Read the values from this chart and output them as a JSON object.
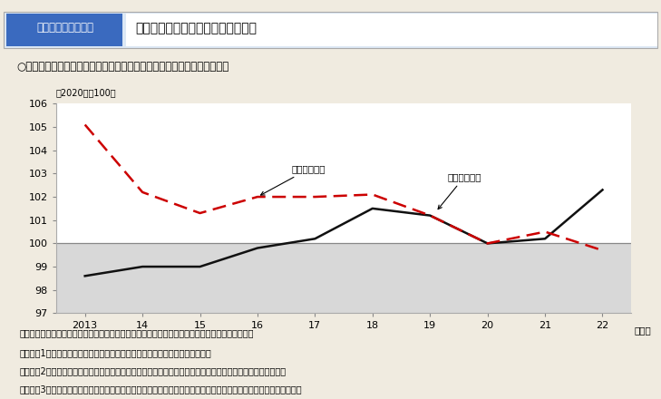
{
  "years": [
    2013,
    2014,
    2015,
    2016,
    2017,
    2018,
    2019,
    2020,
    2021,
    2022
  ],
  "nominal_wage": [
    98.6,
    99.0,
    99.0,
    99.8,
    100.2,
    101.5,
    101.2,
    100.0,
    100.2,
    102.3
  ],
  "real_wage": [
    105.1,
    102.2,
    101.3,
    102.0,
    102.0,
    102.1,
    101.2,
    100.0,
    100.5,
    99.7
  ],
  "nominal_color": "#111111",
  "real_color": "#cc0000",
  "bg_below_100": "#d8d8d8",
  "bg_above_100": "#ffffff",
  "line100_color": "#888888",
  "ylim": [
    97,
    106
  ],
  "xlim": [
    2012.5,
    2022.5
  ],
  "yticks": [
    97,
    98,
    99,
    100,
    101,
    102,
    103,
    104,
    105,
    106
  ],
  "xtick_positions": [
    2013,
    2014,
    2015,
    2016,
    2017,
    2018,
    2019,
    2020,
    2021,
    2022
  ],
  "xtick_labels": [
    "2013",
    "14",
    "15",
    "16",
    "17",
    "18",
    "19",
    "20",
    "21",
    "22"
  ],
  "title_box_text": "第１－（３）－９図",
  "title_main": "名目賃金指数と実質賃金指数の推移",
  "subtitle": "○　２０２２年は物価の上昇を反映し、実質賃金が名目賃金を下回った。",
  "ylabel_note": "（2020年＝100）",
  "xlabel_note": "（年）",
  "label_nominal": "名目賃金指数",
  "label_real": "実質賃金指数",
  "footer_line1": "資料出所　厉生労働省「毎月勤労統計調査」をもとに厉生労働省政策統括官付政策統括室にて作成",
  "footer_line2": "（注）　1）調査産業計、就業形態計、事業所規模５人以上の値を示している。",
  "footer_line3": "　　　　2）名目賃金指数は、就業形態計の現金給与総額に対応した指数である。２０２０年を１００とする。",
  "footer_line4": "　　　　3）実質賃金指数は、名目賃金指数を消費者物価指数（持家の帰属家購を除く総合）で除して算出している。",
  "fig_bg": "#f0ebe0",
  "chart_border_color": "#aaaaaa",
  "title_bg": "#e8f0f8",
  "title_box_bg": "#3a6abf"
}
